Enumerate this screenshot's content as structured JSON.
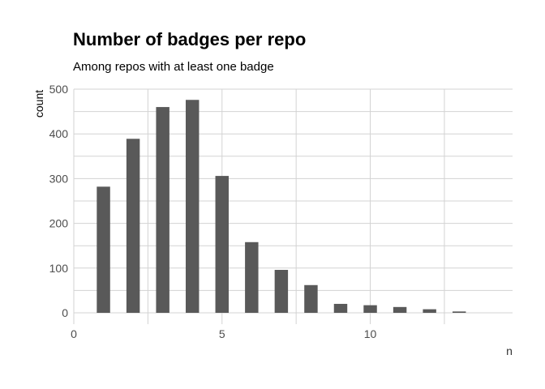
{
  "chart_data": {
    "type": "bar",
    "title": "Number of badges per repo",
    "subtitle": "Among repos with at least one badge",
    "xlabel": "n",
    "ylabel": "count",
    "x": [
      1,
      2,
      3,
      4,
      5,
      6,
      7,
      8,
      9,
      10,
      11,
      12,
      13
    ],
    "values": [
      282,
      389,
      460,
      476,
      306,
      158,
      96,
      62,
      20,
      17,
      13,
      8,
      3
    ],
    "xlim": [
      0,
      14.8
    ],
    "ylim": [
      0,
      500
    ],
    "x_ticks": [
      0,
      5,
      10
    ],
    "y_ticks": [
      0,
      100,
      200,
      300,
      400,
      500
    ],
    "grid": true,
    "legend": "none",
    "bar_color": "#595959",
    "grid_color": "#d3d3d3"
  }
}
